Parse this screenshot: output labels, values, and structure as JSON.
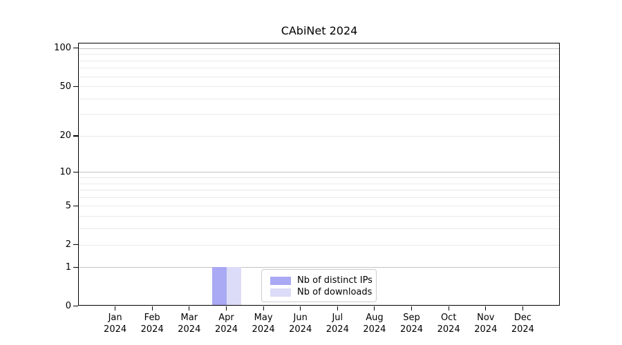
{
  "title": "CAbiNet 2024",
  "colors": {
    "bar_ips": "#a9a9f4",
    "bar_downloads": "#dcdcf8",
    "grid_major": "#c2c2c2",
    "grid_minor": "#e9e9e9",
    "spine": "#000000",
    "legend_border": "#cccccc"
  },
  "legend": {
    "items": [
      {
        "label": "Nb of distinct IPs"
      },
      {
        "label": "Nb of downloads"
      }
    ]
  },
  "chart_data": {
    "type": "bar",
    "title": "CAbiNet 2024",
    "categories": [
      "Jan",
      "Feb",
      "Mar",
      "Apr",
      "May",
      "Jun",
      "Jul",
      "Aug",
      "Sep",
      "Oct",
      "Nov",
      "Dec"
    ],
    "category_year": "2024",
    "series": [
      {
        "name": "Nb of distinct IPs",
        "color": "#a9a9f4",
        "values": [
          0,
          0,
          0,
          1,
          0,
          0,
          0,
          0,
          0,
          0,
          0,
          0
        ]
      },
      {
        "name": "Nb of downloads",
        "color": "#dcdcf8",
        "values": [
          0,
          0,
          0,
          1,
          0,
          0,
          0,
          0,
          0,
          0,
          0,
          0
        ]
      }
    ],
    "xlabel": "",
    "ylabel": "",
    "y_scale": "log1p",
    "y_ticks": [
      0,
      1,
      2,
      5,
      10,
      20,
      50,
      100
    ],
    "y_major_gridlines": [
      1,
      10,
      100
    ],
    "ylim": [
      0,
      110
    ],
    "grid": "horizontal",
    "legend_position": "inside-bottom-center"
  }
}
